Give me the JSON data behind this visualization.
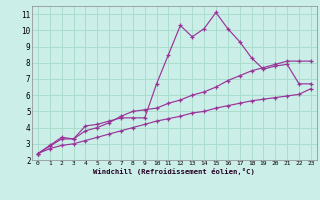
{
  "background_color": "#cceee8",
  "grid_color": "#aaddcc",
  "line_color": "#993399",
  "xlabel": "Windchill (Refroidissement éolien,°C)",
  "xlim": [
    -0.5,
    23.5
  ],
  "ylim": [
    2,
    11.5
  ],
  "yticks": [
    2,
    3,
    4,
    5,
    6,
    7,
    8,
    9,
    10,
    11
  ],
  "xticks": [
    0,
    1,
    2,
    3,
    4,
    5,
    6,
    7,
    8,
    9,
    10,
    11,
    12,
    13,
    14,
    15,
    16,
    17,
    18,
    19,
    20,
    21,
    22,
    23
  ],
  "curve1_x": [
    0,
    1,
    2,
    3,
    4,
    5,
    6,
    7,
    8,
    9,
    10,
    11,
    12,
    13,
    14,
    15,
    16,
    17,
    18,
    19,
    20,
    21,
    22,
    23
  ],
  "curve1_y": [
    2.4,
    2.9,
    3.4,
    3.3,
    4.1,
    4.2,
    4.4,
    4.6,
    4.6,
    4.6,
    6.7,
    8.5,
    10.3,
    9.6,
    10.1,
    11.1,
    10.1,
    9.3,
    8.3,
    7.6,
    7.8,
    7.9,
    6.7,
    6.7
  ],
  "curve2_x": [
    0,
    1,
    2,
    3,
    4,
    5,
    6,
    7,
    8,
    9,
    10,
    11,
    12,
    13,
    14,
    15,
    16,
    17,
    18,
    19,
    20,
    21,
    22,
    23
  ],
  "curve2_y": [
    2.4,
    2.85,
    3.3,
    3.3,
    3.8,
    4.0,
    4.3,
    4.7,
    5.0,
    5.1,
    5.2,
    5.5,
    5.7,
    6.0,
    6.2,
    6.5,
    6.9,
    7.2,
    7.5,
    7.7,
    7.9,
    8.1,
    8.1,
    8.1
  ],
  "curve3_x": [
    0,
    1,
    2,
    3,
    4,
    5,
    6,
    7,
    8,
    9,
    10,
    11,
    12,
    13,
    14,
    15,
    16,
    17,
    18,
    19,
    20,
    21,
    22,
    23
  ],
  "curve3_y": [
    2.4,
    2.7,
    2.9,
    3.0,
    3.2,
    3.4,
    3.6,
    3.8,
    4.0,
    4.2,
    4.4,
    4.55,
    4.7,
    4.9,
    5.0,
    5.2,
    5.35,
    5.5,
    5.65,
    5.75,
    5.85,
    5.95,
    6.05,
    6.4
  ]
}
